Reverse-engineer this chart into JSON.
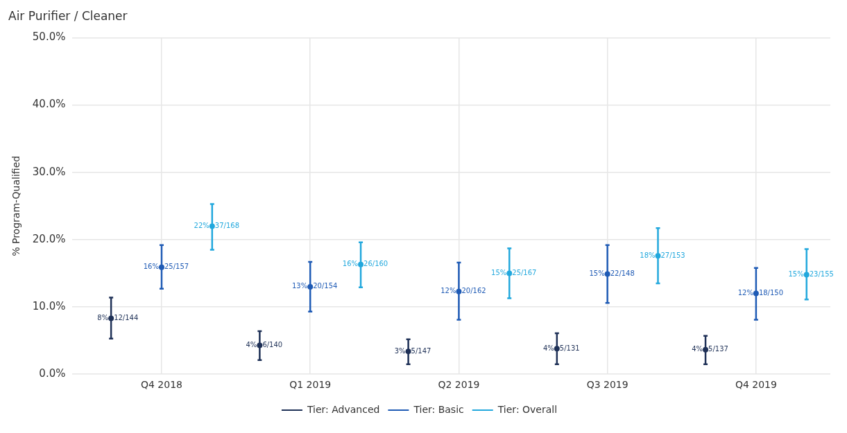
{
  "chart_data": {
    "type": "scatter",
    "title": "Air Purifier / Cleaner",
    "ylabel": "% Program-Qualified",
    "categories": [
      "Q4 2018",
      "Q1 2019",
      "Q2 2019",
      "Q3 2019",
      "Q4 2019"
    ],
    "ylim": [
      0,
      50
    ],
    "yticks": [
      {
        "value": 0,
        "label": "0.0%"
      },
      {
        "value": 10,
        "label": "10.0%"
      },
      {
        "value": 20,
        "label": "20.0%"
      },
      {
        "value": 30,
        "label": "30.0%"
      },
      {
        "value": 40,
        "label": "40.0%"
      },
      {
        "value": 50,
        "label": "50.0%"
      }
    ],
    "grid": true,
    "legend": "bottom",
    "marker": "circle",
    "series": [
      {
        "name": "Tier: Advanced",
        "color": "#1f3157",
        "values": [
          8.3,
          4.3,
          3.4,
          3.8,
          3.65
        ],
        "errors": [
          [
            5.3,
            11.4
          ],
          [
            2.1,
            6.4
          ],
          [
            1.5,
            5.2
          ],
          [
            1.5,
            6.1
          ],
          [
            1.5,
            5.7
          ]
        ],
        "value_labels": [
          "8% 12/144",
          "4% 6/140",
          "3% 5/147",
          "4% 5/131",
          "4% 5/137"
        ]
      },
      {
        "name": "Tier: Basic",
        "color": "#1f5bb5",
        "values": [
          15.9,
          13.0,
          12.3,
          14.9,
          12.0
        ],
        "errors": [
          [
            12.7,
            19.2
          ],
          [
            9.3,
            16.7
          ],
          [
            8.1,
            16.6
          ],
          [
            10.6,
            19.2
          ],
          [
            8.1,
            15.8
          ]
        ],
        "value_labels": [
          "16% 25/157",
          "13% 20/154",
          "12% 20/162",
          "15% 22/148",
          "12% 18/150"
        ]
      },
      {
        "name": "Tier: Overall",
        "color": "#22a8dd",
        "values": [
          22.0,
          16.3,
          15.0,
          17.6,
          14.8
        ],
        "errors": [
          [
            18.5,
            25.3
          ],
          [
            12.9,
            19.6
          ],
          [
            11.3,
            18.7
          ],
          [
            13.5,
            21.7
          ],
          [
            11.1,
            18.6
          ]
        ],
        "value_labels": [
          "22% 37/168",
          "16% 26/160",
          "15% 25/167",
          "18% 27/153",
          "15% 23/155"
        ]
      }
    ]
  }
}
